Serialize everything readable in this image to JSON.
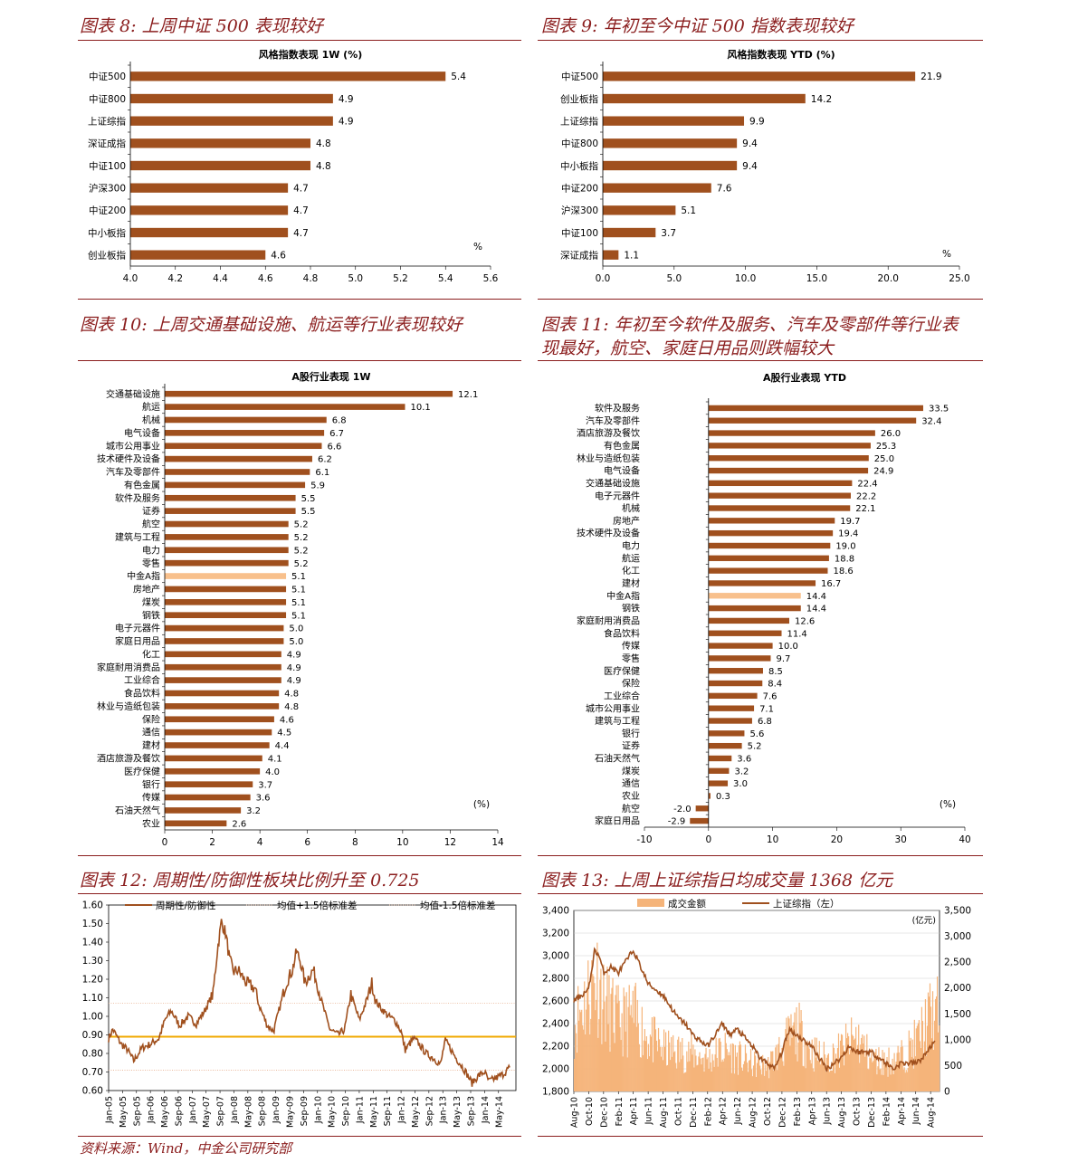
{
  "figures": {
    "f8": "图表 8: 上周中证 500 表现较好",
    "f9": "图表 9: 年初至今中证 500 指数表现较好",
    "f10": "图表 10: 上周交通基础设施、航运等行业表现较好",
    "f11_line1": "图表 11: 年初至今软件及服务、汽车及零部件等行业表",
    "f11_line2": "现最好，航空、家庭日用品则跌幅较大",
    "f12": "图表 12: 周期性/防御性板块比例升至 0.725",
    "f13": "图表 13: 上周上证综指日均成交量 1368 亿元"
  },
  "source": "资料来源：Wind，中金公司研究部",
  "colors": {
    "bar": "#A0501E",
    "highlight": "#F8C08C",
    "line": "#A0501E",
    "mean": "#F0A800",
    "volume": "#F5B47A",
    "title": "#8B1E1E"
  },
  "chart_data": [
    {
      "id": "c8",
      "type": "bar",
      "orientation": "horizontal",
      "title": "风格指数表现 1W (%)",
      "unit_label": "%",
      "categories": [
        "中证500",
        "中证800",
        "上证综指",
        "深证成指",
        "中证100",
        "沪深300",
        "中证200",
        "中小板指",
        "创业板指"
      ],
      "values": [
        5.4,
        4.9,
        4.9,
        4.8,
        4.8,
        4.7,
        4.7,
        4.7,
        4.6
      ],
      "xlim": [
        4.0,
        5.6
      ],
      "xticks": [
        "4.0",
        "4.2",
        "4.4",
        "4.6",
        "4.8",
        "5.0",
        "5.2",
        "5.4",
        "5.6"
      ]
    },
    {
      "id": "c9",
      "type": "bar",
      "orientation": "horizontal",
      "title": "风格指数表现 YTD (%)",
      "unit_label": "%",
      "categories": [
        "中证500",
        "创业板指",
        "上证综指",
        "中证800",
        "中小板指",
        "中证200",
        "沪深300",
        "中证100",
        "深证成指"
      ],
      "values": [
        21.9,
        14.2,
        9.9,
        9.4,
        9.4,
        7.6,
        5.1,
        3.7,
        1.1
      ],
      "xlim": [
        0,
        25
      ],
      "xticks": [
        "0.0",
        "5.0",
        "10.0",
        "15.0",
        "20.0",
        "25.0"
      ]
    },
    {
      "id": "c10",
      "type": "bar",
      "orientation": "horizontal",
      "title": "A股行业表现 1W",
      "unit_label": "(%)",
      "categories": [
        "交通基础设施",
        "航运",
        "机械",
        "电气设备",
        "城市公用事业",
        "技术硬件及设备",
        "汽车及零部件",
        "有色金属",
        "软件及服务",
        "证券",
        "航空",
        "建筑与工程",
        "电力",
        "零售",
        "中金A指",
        "房地产",
        "煤炭",
        "钢铁",
        "电子元器件",
        "家庭日用品",
        "化工",
        "家庭耐用消费品",
        "工业综合",
        "食品饮料",
        "林业与造纸包装",
        "保险",
        "通信",
        "建材",
        "酒店旅游及餐饮",
        "医疗保健",
        "银行",
        "传媒",
        "石油天然气",
        "农业"
      ],
      "values": [
        12.1,
        10.1,
        6.8,
        6.7,
        6.6,
        6.2,
        6.1,
        5.9,
        5.5,
        5.5,
        5.2,
        5.2,
        5.2,
        5.2,
        5.1,
        5.1,
        5.1,
        5.1,
        5.0,
        5.0,
        4.9,
        4.9,
        4.9,
        4.8,
        4.8,
        4.6,
        4.5,
        4.4,
        4.1,
        4.0,
        3.7,
        3.6,
        3.2,
        2.6
      ],
      "highlight": "中金A指",
      "xlim": [
        0,
        14
      ],
      "xticks": [
        "0",
        "2",
        "4",
        "6",
        "8",
        "10",
        "12",
        "14"
      ]
    },
    {
      "id": "c11",
      "type": "bar",
      "orientation": "horizontal",
      "title": "A股行业表现 YTD",
      "unit_label": "(%)",
      "categories": [
        "软件及服务",
        "汽车及零部件",
        "酒店旅游及餐饮",
        "有色金属",
        "林业与造纸包装",
        "电气设备",
        "交通基础设施",
        "电子元器件",
        "机械",
        "房地产",
        "技术硬件及设备",
        "电力",
        "航运",
        "化工",
        "建材",
        "中金A指",
        "钢铁",
        "家庭耐用消费品",
        "食品饮料",
        "传媒",
        "零售",
        "医疗保健",
        "保险",
        "工业综合",
        "城市公用事业",
        "建筑与工程",
        "银行",
        "证券",
        "石油天然气",
        "煤炭",
        "通信",
        "农业",
        "航空",
        "家庭日用品"
      ],
      "values": [
        33.5,
        32.4,
        26.0,
        25.3,
        25.0,
        24.9,
        22.4,
        22.2,
        22.1,
        19.7,
        19.4,
        19.0,
        18.8,
        18.6,
        16.7,
        14.4,
        14.4,
        12.6,
        11.4,
        10.0,
        9.7,
        8.5,
        8.4,
        7.6,
        7.1,
        6.8,
        5.6,
        5.2,
        3.6,
        3.2,
        3.0,
        0.3,
        -2.0,
        -2.9
      ],
      "highlight": "中金A指",
      "xlim": [
        -10,
        40
      ],
      "xticks": [
        "-10",
        "0",
        "10",
        "20",
        "30",
        "40"
      ]
    },
    {
      "id": "c12",
      "type": "line",
      "legend": [
        "周期性/防御性",
        "均值+1.5倍标准差",
        "均值-1.5倍标准差"
      ],
      "ylim": [
        0.6,
        1.6
      ],
      "yticks": [
        "1.60",
        "1.50",
        "1.40",
        "1.30",
        "1.20",
        "1.10",
        "1.00",
        "0.90",
        "0.80",
        "0.70",
        "0.60"
      ],
      "xticks": [
        "Jan-05",
        "May-05",
        "Sep-05",
        "Jan-06",
        "May-06",
        "Sep-06",
        "Jan-07",
        "May-07",
        "Sep-07",
        "Jan-08",
        "May-08",
        "Sep-08",
        "Jan-09",
        "May-09",
        "Sep-09",
        "Jan-10",
        "May-10",
        "Sep-10",
        "Jan-11",
        "May-11",
        "Sep-11",
        "Jan-12",
        "May-12",
        "Sep-12",
        "Jan-13",
        "May-13",
        "Sep-13",
        "Jan-14",
        "May-14"
      ],
      "mean": 0.89,
      "upper": 1.07,
      "lower": 0.71,
      "series": [
        {
          "name": "周期性/防御性",
          "x_start": 2005.0,
          "x_end": 2014.6,
          "anchors": [
            [
              2005.0,
              0.88
            ],
            [
              2005.1,
              0.93
            ],
            [
              2005.3,
              0.85
            ],
            [
              2005.45,
              0.82
            ],
            [
              2005.6,
              0.76
            ],
            [
              2005.8,
              0.83
            ],
            [
              2006.0,
              0.85
            ],
            [
              2006.2,
              0.88
            ],
            [
              2006.35,
              0.98
            ],
            [
              2006.5,
              1.03
            ],
            [
              2006.7,
              0.95
            ],
            [
              2006.9,
              1.0
            ],
            [
              2007.1,
              0.96
            ],
            [
              2007.3,
              1.03
            ],
            [
              2007.5,
              1.12
            ],
            [
              2007.6,
              1.35
            ],
            [
              2007.7,
              1.51
            ],
            [
              2007.8,
              1.45
            ],
            [
              2007.9,
              1.3
            ],
            [
              2008.0,
              1.24
            ],
            [
              2008.1,
              1.25
            ],
            [
              2008.3,
              1.18
            ],
            [
              2008.5,
              1.15
            ],
            [
              2008.6,
              1.06
            ],
            [
              2008.8,
              0.95
            ],
            [
              2008.95,
              0.92
            ],
            [
              2009.1,
              1.05
            ],
            [
              2009.25,
              1.18
            ],
            [
              2009.4,
              1.25
            ],
            [
              2009.5,
              1.35
            ],
            [
              2009.6,
              1.29
            ],
            [
              2009.7,
              1.18
            ],
            [
              2009.8,
              1.22
            ],
            [
              2009.9,
              1.25
            ],
            [
              2010.0,
              1.17
            ],
            [
              2010.1,
              1.08
            ],
            [
              2010.2,
              1.0
            ],
            [
              2010.3,
              0.93
            ],
            [
              2010.5,
              0.9
            ],
            [
              2010.65,
              0.93
            ],
            [
              2010.8,
              1.12
            ],
            [
              2010.9,
              1.05
            ],
            [
              2011.0,
              0.98
            ],
            [
              2011.2,
              1.1
            ],
            [
              2011.3,
              1.18
            ],
            [
              2011.4,
              1.08
            ],
            [
              2011.5,
              1.05
            ],
            [
              2011.7,
              1.0
            ],
            [
              2011.85,
              0.98
            ],
            [
              2012.0,
              0.92
            ],
            [
              2012.1,
              0.82
            ],
            [
              2012.3,
              0.88
            ],
            [
              2012.4,
              0.86
            ],
            [
              2012.6,
              0.8
            ],
            [
              2012.8,
              0.77
            ],
            [
              2012.95,
              0.74
            ],
            [
              2013.05,
              0.87
            ],
            [
              2013.15,
              0.84
            ],
            [
              2013.3,
              0.78
            ],
            [
              2013.4,
              0.75
            ],
            [
              2013.55,
              0.7
            ],
            [
              2013.7,
              0.64
            ],
            [
              2013.85,
              0.68
            ],
            [
              2014.0,
              0.7
            ],
            [
              2014.1,
              0.65
            ],
            [
              2014.3,
              0.67
            ],
            [
              2014.45,
              0.69
            ],
            [
              2014.6,
              0.725
            ]
          ]
        }
      ]
    },
    {
      "id": "c13",
      "type": "bar+line",
      "legend": [
        "成交金额",
        "上证综指（左）"
      ],
      "right_unit": "(亿元)",
      "ylim_left": [
        1800,
        3400
      ],
      "ylim_right": [
        0,
        3500
      ],
      "yticks_left": [
        "3,400",
        "3,200",
        "3,000",
        "2,800",
        "2,600",
        "2,400",
        "2,200",
        "2,000",
        "1,800"
      ],
      "yticks_right": [
        "3,500",
        "3,000",
        "2,500",
        "2,000",
        "1,500",
        "1,000",
        "500",
        "0"
      ],
      "xticks": [
        "Aug-10",
        "Oct-10",
        "Dec-10",
        "Feb-11",
        "Apr-11",
        "Jun-11",
        "Aug-11",
        "Oct-11",
        "Dec-11",
        "Feb-12",
        "Apr-12",
        "Jun-12",
        "Aug-12",
        "Oct-12",
        "Dec-12",
        "Feb-13",
        "Apr-13",
        "Jun-13",
        "Aug-13",
        "Oct-13",
        "Dec-13",
        "Feb-14",
        "Apr-14",
        "Jun-14",
        "Aug-14"
      ],
      "index_anchors": [
        [
          0,
          2600
        ],
        [
          0.5,
          2650
        ],
        [
          1.0,
          2700
        ],
        [
          1.4,
          3050
        ],
        [
          1.7,
          3000
        ],
        [
          2.0,
          2850
        ],
        [
          2.5,
          2900
        ],
        [
          3.0,
          2850
        ],
        [
          3.5,
          2950
        ],
        [
          4.0,
          3050
        ],
        [
          4.5,
          2900
        ],
        [
          5.0,
          2750
        ],
        [
          6.0,
          2650
        ],
        [
          6.5,
          2550
        ],
        [
          7.0,
          2450
        ],
        [
          7.5,
          2400
        ],
        [
          8.0,
          2300
        ],
        [
          8.5,
          2250
        ],
        [
          9.0,
          2200
        ],
        [
          9.5,
          2300
        ],
        [
          10.0,
          2400
        ],
        [
          10.5,
          2300
        ],
        [
          11.0,
          2350
        ],
        [
          12.0,
          2200
        ],
        [
          12.5,
          2100
        ],
        [
          13.0,
          2050
        ],
        [
          13.5,
          2000
        ],
        [
          14.0,
          2150
        ],
        [
          14.5,
          2350
        ],
        [
          15.0,
          2300
        ],
        [
          15.5,
          2250
        ],
        [
          16.0,
          2200
        ],
        [
          17.0,
          2000
        ],
        [
          17.5,
          2050
        ],
        [
          18.0,
          2100
        ],
        [
          18.5,
          2200
        ],
        [
          19.0,
          2150
        ],
        [
          20.0,
          2150
        ],
        [
          21.0,
          2050
        ],
        [
          21.5,
          2000
        ],
        [
          22.0,
          2050
        ],
        [
          23.0,
          2050
        ],
        [
          23.5,
          2100
        ],
        [
          24.0,
          2200
        ],
        [
          24.3,
          2230
        ]
      ],
      "volume_anchors": [
        [
          0,
          1400
        ],
        [
          1.5,
          2350
        ],
        [
          2,
          1800
        ],
        [
          3,
          1400
        ],
        [
          4,
          1500
        ],
        [
          5,
          1100
        ],
        [
          6,
          850
        ],
        [
          7,
          800
        ],
        [
          8,
          750
        ],
        [
          9,
          650
        ],
        [
          10,
          850
        ],
        [
          11,
          700
        ],
        [
          12,
          550
        ],
        [
          13,
          500
        ],
        [
          14,
          900
        ],
        [
          15,
          1250
        ],
        [
          16,
          800
        ],
        [
          17,
          650
        ],
        [
          18,
          850
        ],
        [
          19,
          1100
        ],
        [
          20,
          650
        ],
        [
          21,
          600
        ],
        [
          22,
          700
        ],
        [
          23,
          1000
        ],
        [
          24,
          1550
        ]
      ]
    }
  ]
}
